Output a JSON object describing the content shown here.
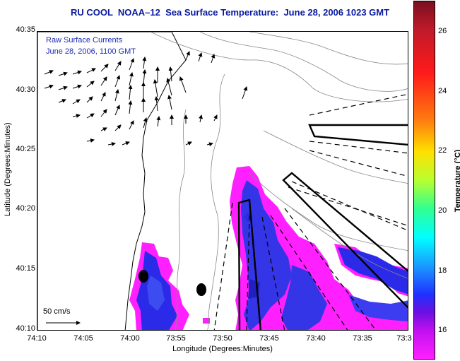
{
  "header": {
    "title": "RU COOL  NOAA–12  Sea Surface Temperature:  June 28, 2006 1023 GMT"
  },
  "overlay": {
    "line1": "Raw Surface Currents",
    "line2": "June 28, 2006, 1100 GMT",
    "scale_label": "50 cm/s"
  },
  "axes": {
    "ylabel": "Latitude (Degrees:Minutes)",
    "xlabel": "Longitude (Degrees:Minutes)",
    "yticks": [
      "40:35",
      "40:30",
      "40:25",
      "40:20",
      "40:15",
      "40:10"
    ],
    "xticks": [
      "74:10",
      "74:05",
      "74:00",
      "73:55",
      "73:50",
      "73:45",
      "73:40",
      "73:35",
      "73:3"
    ]
  },
  "colorbar": {
    "label": "Temperature (°C)",
    "ticks": [
      "26",
      "24",
      "22",
      "20",
      "18",
      "16"
    ]
  },
  "markers": [
    {
      "name": "black-dot-west",
      "shape": "circle"
    },
    {
      "name": "black-dot-east",
      "shape": "circle"
    }
  ],
  "colors": {
    "title": "#0a1aa0",
    "sst_warm": "#ff20ff",
    "sst_cool": "#2030ff",
    "land": "#ffffff"
  }
}
